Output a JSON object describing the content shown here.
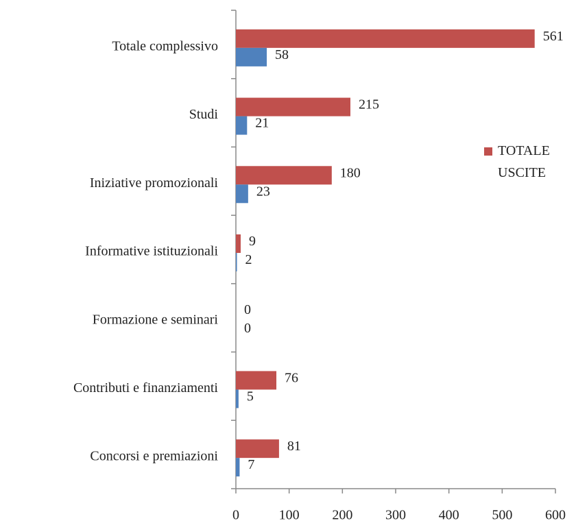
{
  "chart_data": {
    "type": "bar",
    "orientation": "horizontal",
    "categories": [
      "Totale complessivo",
      "Studi",
      "Iniziative promozionali",
      "Informative istituzionali",
      "Formazione e seminari",
      "Contributi e finanziamenti",
      "Concorsi e premiazioni"
    ],
    "series": [
      {
        "name": "TOTALE USCITE",
        "color": "#c0504d",
        "values": [
          561,
          215,
          180,
          9,
          0,
          76,
          81
        ]
      },
      {
        "color": "#4f81bd",
        "values": [
          58,
          21,
          23,
          2,
          0,
          5,
          7
        ]
      }
    ],
    "xlim": [
      0,
      600
    ],
    "xticks": [
      0,
      100,
      200,
      300,
      400,
      500,
      600
    ],
    "legend": "right",
    "grid": false
  }
}
